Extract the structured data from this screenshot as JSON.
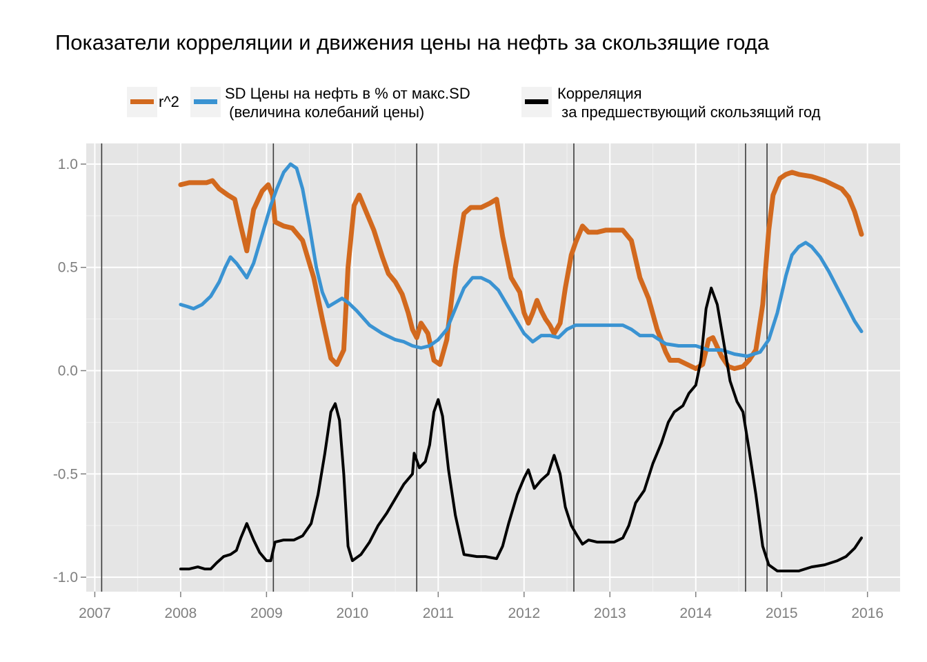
{
  "title": "Показатели корреляции и движения цены на нефть за скользящие года",
  "legend": [
    {
      "label": "r^2",
      "color": "#d2691e"
    },
    {
      "label": "SD Цены на нефть в % от макс.SD\n (величина колебаний цены)",
      "color": "#3a93d2"
    },
    {
      "label": "Корреляция\n за предшествующий скользящий год",
      "color": "#000000"
    }
  ],
  "chart_data": {
    "type": "line",
    "title": "Показатели корреляции и движения цены на нефть за скользящие года",
    "xlabel": "",
    "ylabel": "",
    "xlim": [
      2006.9,
      2016.38
    ],
    "ylim": [
      -1.07,
      1.1
    ],
    "x_ticks": [
      2007,
      2008,
      2009,
      2010,
      2011,
      2012,
      2013,
      2014,
      2015,
      2016
    ],
    "x_tick_labels": [
      "2007",
      "2008",
      "2009",
      "2010",
      "2011",
      "2012",
      "2013",
      "2014",
      "2015",
      "2016"
    ],
    "y_ticks": [
      1.0,
      0.5,
      0.0,
      -0.5,
      -1.0
    ],
    "y_tick_labels": [
      "1.0",
      "0.5",
      "0.0",
      "-0.5",
      "-1.0"
    ],
    "grid": true,
    "legend_position": "top",
    "vlines": [
      2007.08,
      2009.08,
      2010.75,
      2012.58,
      2014.58,
      2014.83
    ],
    "series": [
      {
        "name": "r^2",
        "color": "#d2691e",
        "width": 7,
        "points": [
          [
            2008.0,
            0.9
          ],
          [
            2008.1,
            0.91
          ],
          [
            2008.2,
            0.91
          ],
          [
            2008.3,
            0.91
          ],
          [
            2008.37,
            0.92
          ],
          [
            2008.45,
            0.88
          ],
          [
            2008.55,
            0.85
          ],
          [
            2008.63,
            0.83
          ],
          [
            2008.7,
            0.7
          ],
          [
            2008.77,
            0.58
          ],
          [
            2008.85,
            0.78
          ],
          [
            2008.95,
            0.87
          ],
          [
            2009.02,
            0.9
          ],
          [
            2009.07,
            0.85
          ],
          [
            2009.1,
            0.72
          ],
          [
            2009.2,
            0.7
          ],
          [
            2009.3,
            0.69
          ],
          [
            2009.42,
            0.63
          ],
          [
            2009.55,
            0.45
          ],
          [
            2009.65,
            0.25
          ],
          [
            2009.75,
            0.06
          ],
          [
            2009.82,
            0.03
          ],
          [
            2009.9,
            0.1
          ],
          [
            2009.95,
            0.5
          ],
          [
            2010.02,
            0.8
          ],
          [
            2010.08,
            0.85
          ],
          [
            2010.15,
            0.78
          ],
          [
            2010.25,
            0.68
          ],
          [
            2010.35,
            0.55
          ],
          [
            2010.42,
            0.47
          ],
          [
            2010.5,
            0.43
          ],
          [
            2010.58,
            0.37
          ],
          [
            2010.65,
            0.28
          ],
          [
            2010.7,
            0.2
          ],
          [
            2010.75,
            0.16
          ],
          [
            2010.8,
            0.23
          ],
          [
            2010.88,
            0.18
          ],
          [
            2010.95,
            0.05
          ],
          [
            2011.02,
            0.03
          ],
          [
            2011.1,
            0.15
          ],
          [
            2011.2,
            0.5
          ],
          [
            2011.3,
            0.76
          ],
          [
            2011.38,
            0.79
          ],
          [
            2011.5,
            0.79
          ],
          [
            2011.6,
            0.81
          ],
          [
            2011.68,
            0.83
          ],
          [
            2011.75,
            0.65
          ],
          [
            2011.85,
            0.45
          ],
          [
            2011.95,
            0.38
          ],
          [
            2012.0,
            0.28
          ],
          [
            2012.05,
            0.23
          ],
          [
            2012.1,
            0.28
          ],
          [
            2012.15,
            0.34
          ],
          [
            2012.2,
            0.29
          ],
          [
            2012.25,
            0.25
          ],
          [
            2012.3,
            0.22
          ],
          [
            2012.35,
            0.18
          ],
          [
            2012.42,
            0.23
          ],
          [
            2012.48,
            0.4
          ],
          [
            2012.55,
            0.56
          ],
          [
            2012.6,
            0.62
          ],
          [
            2012.68,
            0.7
          ],
          [
            2012.75,
            0.67
          ],
          [
            2012.85,
            0.67
          ],
          [
            2012.95,
            0.68
          ],
          [
            2013.05,
            0.68
          ],
          [
            2013.15,
            0.68
          ],
          [
            2013.25,
            0.63
          ],
          [
            2013.35,
            0.45
          ],
          [
            2013.45,
            0.35
          ],
          [
            2013.55,
            0.2
          ],
          [
            2013.65,
            0.09
          ],
          [
            2013.7,
            0.05
          ],
          [
            2013.8,
            0.05
          ],
          [
            2013.9,
            0.03
          ],
          [
            2014.0,
            0.01
          ],
          [
            2014.08,
            0.03
          ],
          [
            2014.15,
            0.15
          ],
          [
            2014.2,
            0.16
          ],
          [
            2014.3,
            0.07
          ],
          [
            2014.38,
            0.02
          ],
          [
            2014.45,
            0.01
          ],
          [
            2014.55,
            0.02
          ],
          [
            2014.62,
            0.05
          ],
          [
            2014.7,
            0.1
          ],
          [
            2014.78,
            0.32
          ],
          [
            2014.85,
            0.68
          ],
          [
            2014.9,
            0.85
          ],
          [
            2014.98,
            0.93
          ],
          [
            2015.05,
            0.95
          ],
          [
            2015.12,
            0.96
          ],
          [
            2015.2,
            0.95
          ],
          [
            2015.35,
            0.94
          ],
          [
            2015.5,
            0.92
          ],
          [
            2015.6,
            0.9
          ],
          [
            2015.7,
            0.88
          ],
          [
            2015.78,
            0.84
          ],
          [
            2015.85,
            0.77
          ],
          [
            2015.93,
            0.66
          ]
        ]
      },
      {
        "name": "SD Цены на нефть в % от макс.SD\n (величина колебаний цены)",
        "color": "#3a93d2",
        "width": 5,
        "points": [
          [
            2008.0,
            0.32
          ],
          [
            2008.08,
            0.31
          ],
          [
            2008.15,
            0.3
          ],
          [
            2008.25,
            0.32
          ],
          [
            2008.35,
            0.36
          ],
          [
            2008.45,
            0.43
          ],
          [
            2008.52,
            0.5
          ],
          [
            2008.58,
            0.55
          ],
          [
            2008.65,
            0.52
          ],
          [
            2008.72,
            0.48
          ],
          [
            2008.77,
            0.45
          ],
          [
            2008.85,
            0.52
          ],
          [
            2008.95,
            0.66
          ],
          [
            2009.05,
            0.8
          ],
          [
            2009.12,
            0.88
          ],
          [
            2009.2,
            0.96
          ],
          [
            2009.28,
            1.0
          ],
          [
            2009.35,
            0.98
          ],
          [
            2009.42,
            0.88
          ],
          [
            2009.5,
            0.7
          ],
          [
            2009.58,
            0.5
          ],
          [
            2009.65,
            0.38
          ],
          [
            2009.72,
            0.31
          ],
          [
            2009.8,
            0.33
          ],
          [
            2009.88,
            0.35
          ],
          [
            2009.95,
            0.33
          ],
          [
            2010.05,
            0.29
          ],
          [
            2010.2,
            0.22
          ],
          [
            2010.35,
            0.18
          ],
          [
            2010.5,
            0.15
          ],
          [
            2010.6,
            0.14
          ],
          [
            2010.7,
            0.12
          ],
          [
            2010.8,
            0.11
          ],
          [
            2010.9,
            0.12
          ],
          [
            2011.0,
            0.15
          ],
          [
            2011.1,
            0.2
          ],
          [
            2011.2,
            0.3
          ],
          [
            2011.3,
            0.4
          ],
          [
            2011.4,
            0.45
          ],
          [
            2011.5,
            0.45
          ],
          [
            2011.6,
            0.43
          ],
          [
            2011.7,
            0.39
          ],
          [
            2011.8,
            0.32
          ],
          [
            2011.9,
            0.25
          ],
          [
            2012.0,
            0.18
          ],
          [
            2012.1,
            0.14
          ],
          [
            2012.2,
            0.17
          ],
          [
            2012.3,
            0.17
          ],
          [
            2012.4,
            0.16
          ],
          [
            2012.5,
            0.2
          ],
          [
            2012.6,
            0.22
          ],
          [
            2012.8,
            0.22
          ],
          [
            2013.0,
            0.22
          ],
          [
            2013.15,
            0.22
          ],
          [
            2013.25,
            0.2
          ],
          [
            2013.35,
            0.17
          ],
          [
            2013.5,
            0.17
          ],
          [
            2013.65,
            0.13
          ],
          [
            2013.8,
            0.12
          ],
          [
            2014.0,
            0.12
          ],
          [
            2014.15,
            0.1
          ],
          [
            2014.3,
            0.1
          ],
          [
            2014.45,
            0.08
          ],
          [
            2014.6,
            0.07
          ],
          [
            2014.75,
            0.09
          ],
          [
            2014.85,
            0.15
          ],
          [
            2014.95,
            0.28
          ],
          [
            2015.05,
            0.46
          ],
          [
            2015.12,
            0.56
          ],
          [
            2015.2,
            0.6
          ],
          [
            2015.28,
            0.62
          ],
          [
            2015.35,
            0.6
          ],
          [
            2015.45,
            0.55
          ],
          [
            2015.55,
            0.48
          ],
          [
            2015.65,
            0.4
          ],
          [
            2015.75,
            0.32
          ],
          [
            2015.85,
            0.24
          ],
          [
            2015.93,
            0.19
          ]
        ]
      },
      {
        "name": "Корреляция\n за предшествующий скользящий год",
        "color": "#000000",
        "width": 4,
        "points": [
          [
            2008.0,
            -0.96
          ],
          [
            2008.1,
            -0.96
          ],
          [
            2008.2,
            -0.95
          ],
          [
            2008.28,
            -0.96
          ],
          [
            2008.35,
            -0.96
          ],
          [
            2008.42,
            -0.93
          ],
          [
            2008.5,
            -0.9
          ],
          [
            2008.58,
            -0.89
          ],
          [
            2008.65,
            -0.87
          ],
          [
            2008.7,
            -0.81
          ],
          [
            2008.77,
            -0.74
          ],
          [
            2008.85,
            -0.82
          ],
          [
            2008.92,
            -0.88
          ],
          [
            2009.0,
            -0.92
          ],
          [
            2009.05,
            -0.92
          ],
          [
            2009.1,
            -0.83
          ],
          [
            2009.2,
            -0.82
          ],
          [
            2009.32,
            -0.82
          ],
          [
            2009.42,
            -0.8
          ],
          [
            2009.52,
            -0.74
          ],
          [
            2009.6,
            -0.6
          ],
          [
            2009.68,
            -0.4
          ],
          [
            2009.75,
            -0.2
          ],
          [
            2009.8,
            -0.16
          ],
          [
            2009.85,
            -0.24
          ],
          [
            2009.9,
            -0.5
          ],
          [
            2009.95,
            -0.85
          ],
          [
            2010.0,
            -0.92
          ],
          [
            2010.1,
            -0.89
          ],
          [
            2010.2,
            -0.83
          ],
          [
            2010.3,
            -0.75
          ],
          [
            2010.4,
            -0.69
          ],
          [
            2010.5,
            -0.62
          ],
          [
            2010.6,
            -0.55
          ],
          [
            2010.7,
            -0.5
          ],
          [
            2010.72,
            -0.4
          ],
          [
            2010.78,
            -0.47
          ],
          [
            2010.85,
            -0.44
          ],
          [
            2010.9,
            -0.36
          ],
          [
            2010.95,
            -0.2
          ],
          [
            2011.0,
            -0.14
          ],
          [
            2011.05,
            -0.22
          ],
          [
            2011.12,
            -0.48
          ],
          [
            2011.2,
            -0.7
          ],
          [
            2011.3,
            -0.89
          ],
          [
            2011.45,
            -0.9
          ],
          [
            2011.55,
            -0.9
          ],
          [
            2011.68,
            -0.91
          ],
          [
            2011.75,
            -0.85
          ],
          [
            2011.82,
            -0.74
          ],
          [
            2011.92,
            -0.6
          ],
          [
            2012.0,
            -0.52
          ],
          [
            2012.05,
            -0.48
          ],
          [
            2012.12,
            -0.57
          ],
          [
            2012.2,
            -0.53
          ],
          [
            2012.28,
            -0.5
          ],
          [
            2012.35,
            -0.41
          ],
          [
            2012.42,
            -0.5
          ],
          [
            2012.48,
            -0.66
          ],
          [
            2012.55,
            -0.75
          ],
          [
            2012.62,
            -0.8
          ],
          [
            2012.68,
            -0.84
          ],
          [
            2012.75,
            -0.82
          ],
          [
            2012.85,
            -0.83
          ],
          [
            2012.95,
            -0.83
          ],
          [
            2013.05,
            -0.83
          ],
          [
            2013.15,
            -0.81
          ],
          [
            2013.22,
            -0.75
          ],
          [
            2013.3,
            -0.64
          ],
          [
            2013.4,
            -0.58
          ],
          [
            2013.5,
            -0.45
          ],
          [
            2013.6,
            -0.35
          ],
          [
            2013.68,
            -0.25
          ],
          [
            2013.75,
            -0.2
          ],
          [
            2013.85,
            -0.17
          ],
          [
            2013.92,
            -0.11
          ],
          [
            2014.0,
            -0.07
          ],
          [
            2014.06,
            0.05
          ],
          [
            2014.12,
            0.3
          ],
          [
            2014.18,
            0.4
          ],
          [
            2014.25,
            0.32
          ],
          [
            2014.32,
            0.15
          ],
          [
            2014.4,
            -0.05
          ],
          [
            2014.48,
            -0.15
          ],
          [
            2014.55,
            -0.2
          ],
          [
            2014.62,
            -0.38
          ],
          [
            2014.7,
            -0.6
          ],
          [
            2014.78,
            -0.85
          ],
          [
            2014.85,
            -0.94
          ],
          [
            2014.95,
            -0.97
          ],
          [
            2015.05,
            -0.97
          ],
          [
            2015.2,
            -0.97
          ],
          [
            2015.35,
            -0.95
          ],
          [
            2015.5,
            -0.94
          ],
          [
            2015.65,
            -0.92
          ],
          [
            2015.75,
            -0.9
          ],
          [
            2015.85,
            -0.86
          ],
          [
            2015.93,
            -0.81
          ]
        ]
      }
    ]
  }
}
